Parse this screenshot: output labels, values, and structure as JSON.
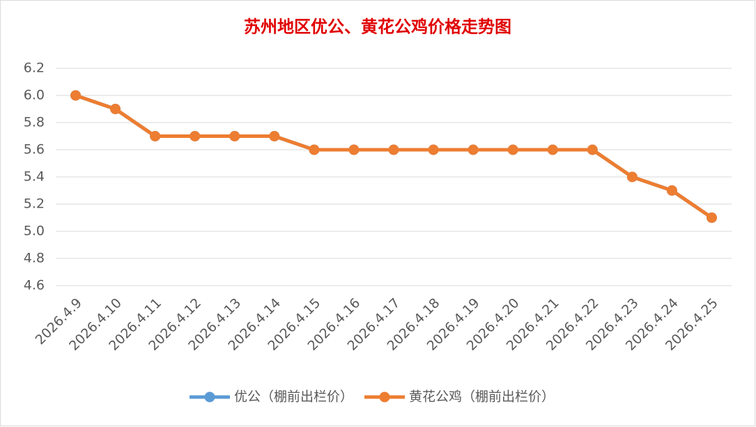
{
  "chart_data": {
    "type": "line",
    "title": "苏州地区优公、黄花公鸡价格走势图",
    "categories": [
      "2026.4.9",
      "2026.4.10",
      "2026.4.11",
      "2026.4.12",
      "2026.4.13",
      "2026.4.14",
      "2026.4.15",
      "2026.4.16",
      "2026.4.17",
      "2026.4.18",
      "2026.4.19",
      "2026.4.20",
      "2026.4.21",
      "2026.4.22",
      "2026.4.23",
      "2026.4.24",
      "2026.4.25"
    ],
    "series": [
      {
        "name": "优公（棚前出栏价）",
        "color": "#5b9bd5",
        "values": [
          6.0,
          5.9,
          5.7,
          5.7,
          5.7,
          5.7,
          5.6,
          5.6,
          5.6,
          5.6,
          5.6,
          5.6,
          5.6,
          5.6,
          5.4,
          5.3,
          5.1
        ]
      },
      {
        "name": "黄花公鸡（棚前出栏价）",
        "color": "#ed7d31",
        "values": [
          6.0,
          5.9,
          5.7,
          5.7,
          5.7,
          5.7,
          5.6,
          5.6,
          5.6,
          5.6,
          5.6,
          5.6,
          5.6,
          5.6,
          5.4,
          5.3,
          5.1
        ]
      }
    ],
    "ylim": [
      4.6,
      6.2
    ],
    "yticks": [
      4.6,
      4.8,
      {
        "value": 5,
        "label": "5.0"
      },
      5.2,
      5.4,
      5.6,
      5.8,
      {
        "value": 6,
        "label": "6.0"
      },
      6.2
    ],
    "grid": true,
    "legend": "bottom"
  }
}
